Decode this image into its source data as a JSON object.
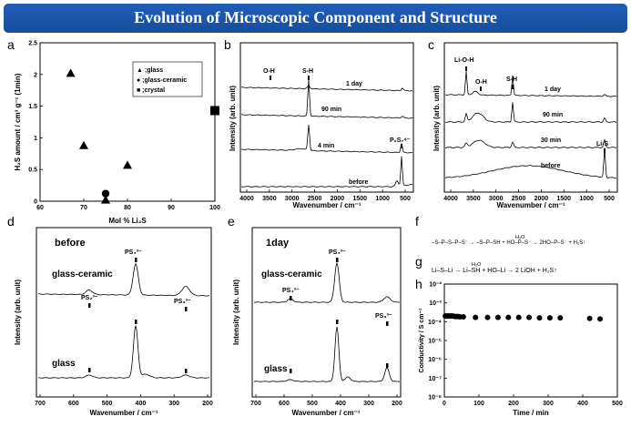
{
  "title": "Evolution of Microscopic Component and Structure",
  "colors": {
    "banner": "#1f5fb8",
    "banner_text": "#ffffff",
    "ink": "#000000"
  },
  "panels": {
    "a": {
      "label": "a"
    },
    "b": {
      "label": "b"
    },
    "c": {
      "label": "c"
    },
    "d": {
      "label": "d"
    },
    "e": {
      "label": "e"
    },
    "f": {
      "label": "f"
    },
    "g": {
      "label": "g"
    },
    "h": {
      "label": "h"
    }
  },
  "chart_data": [
    {
      "panel": "a",
      "type": "scatter",
      "xlabel": "Mol % Li₂S",
      "ylabel": "H₂S amount / cm³ g⁻¹ (1min)",
      "xlim": [
        60,
        100
      ],
      "ylim": [
        0,
        2.5
      ],
      "xticks": [
        "60",
        "70",
        "80",
        "90",
        "100"
      ],
      "yticks": [
        "0",
        "0.5",
        "1",
        "1.5",
        "2",
        "2.5"
      ],
      "legend": [
        "▲ ;glass",
        "● ;glass-ceramic",
        "■ ;crystal"
      ],
      "legend_position": "top-right",
      "series": [
        {
          "name": "glass",
          "marker": "triangle",
          "x": [
            67,
            70,
            75,
            80
          ],
          "y": [
            2.02,
            0.88,
            0.02,
            0.57
          ]
        },
        {
          "name": "glass-ceramic",
          "marker": "circle",
          "x": [
            75
          ],
          "y": [
            0.12
          ]
        },
        {
          "name": "crystal",
          "marker": "square",
          "x": [
            100
          ],
          "y": [
            1.43
          ]
        }
      ]
    },
    {
      "panel": "b",
      "type": "line",
      "xlabel": "Wavenumber / cm⁻¹",
      "ylabel": "Intensity (arb. unit)",
      "xlim": [
        4000,
        400
      ],
      "xticks": [
        "4000",
        "3500",
        "3000",
        "2500",
        "2000",
        "1500",
        "1000",
        "500"
      ],
      "series": [
        "1 day",
        "90 min",
        "4 min",
        "before"
      ],
      "annotations": [
        "O-H",
        "S-H",
        "P₂S₇⁴⁻"
      ]
    },
    {
      "panel": "c",
      "type": "line",
      "xlabel": "Wavenumber / cm⁻¹",
      "ylabel": "Intensity (arb. unit)",
      "xlim": [
        4000,
        400
      ],
      "xticks": [
        "4000",
        "3500",
        "3000",
        "2500",
        "2000",
        "1500",
        "1000",
        "500"
      ],
      "series": [
        "1 day",
        "90 min",
        "30 min",
        "before"
      ],
      "annotations": [
        "Li-O-H",
        "O-H",
        "S-H",
        "Li-S"
      ]
    },
    {
      "panel": "d",
      "type": "line",
      "caption": "before",
      "xlabel": "Wavenumber / cm⁻¹",
      "ylabel": "Intensity (arb. unit)",
      "xlim": [
        700,
        200
      ],
      "xticks": [
        "700",
        "600",
        "500",
        "400",
        "300",
        "200"
      ],
      "series": [
        "glass-ceramic",
        "glass"
      ],
      "annotations": [
        "PS₂³⁻",
        "PS₄³⁻",
        "PS₃³⁻"
      ]
    },
    {
      "panel": "e",
      "type": "line",
      "caption": "1day",
      "xlabel": "Wavenumber / cm⁻¹",
      "ylabel": "Intensity (arb. unit)",
      "xlim": [
        700,
        200
      ],
      "xticks": [
        "700",
        "600",
        "500",
        "400",
        "300",
        "200"
      ],
      "series": [
        "glass-ceramic",
        "glass"
      ],
      "annotations": [
        "PS₄³⁻",
        "PS₄³⁻",
        "PS₃³⁻"
      ]
    },
    {
      "panel": "h",
      "type": "scatter",
      "xlabel": "Time / min",
      "ylabel": "Conductivity / S cm⁻¹",
      "xlim": [
        0,
        500
      ],
      "ylim_log": [
        -8,
        -2
      ],
      "xticks": [
        "0",
        "100",
        "200",
        "300",
        "400",
        "500"
      ],
      "yticks": [
        "10⁻⁸",
        "10⁻⁷",
        "10⁻⁶",
        "10⁻⁵",
        "10⁻⁴",
        "10⁻³",
        "10⁻²"
      ],
      "x": [
        3,
        6,
        9,
        12,
        15,
        18,
        21,
        25,
        30,
        35,
        40,
        45,
        55,
        90,
        125,
        155,
        185,
        215,
        245,
        275,
        305,
        335,
        420,
        450
      ],
      "y": [
        0.0002,
        0.0002,
        0.0002,
        0.0002,
        0.0002,
        0.0002,
        0.0002,
        0.0002,
        0.00019,
        0.00019,
        0.00019,
        0.00018,
        0.00018,
        0.00017,
        0.00017,
        0.00017,
        0.00017,
        0.00017,
        0.00017,
        0.00016,
        0.00016,
        0.00016,
        0.00015,
        0.00014
      ]
    }
  ],
  "reactions": {
    "f_text": "–S–P–S–P–S⁻ → –S–P–SH + HO–P–S⁻ → 2HO–P–S⁻ + H₂S↑",
    "f_reagent": "H₂O",
    "g_text": "Li–S–Li → Li–SH + HO–Li → 2 LiOH + H₂S↑",
    "g_reagent": "H₂O"
  }
}
